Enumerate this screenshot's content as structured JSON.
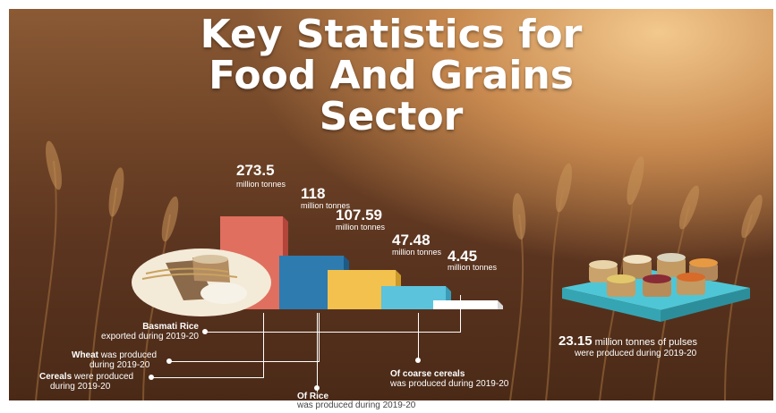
{
  "title": {
    "line1": "Key Statistics for",
    "line2": "Food And Grains",
    "line3": "Sector"
  },
  "unit": "million tonnes",
  "chart_data": {
    "type": "bar",
    "categories": [
      "Basmati Rice exported during 2019-20",
      "Wheat was produced during 2019-20",
      "Cereals were produced during 2019-20",
      "Of Rice was produced during 2019-20",
      "Of coarse cereals was produced during 2019-20"
    ],
    "bars": [
      {
        "value_label": "273.5",
        "value": 273.5,
        "color": "#e06f5f",
        "side": "#b3463b"
      },
      {
        "value_label": "118",
        "value": 118,
        "color": "#2e7bb0",
        "side": "#1d5a86"
      },
      {
        "value_label": "107.59",
        "value": 107.59,
        "color": "#f2c14e",
        "side": "#cc9a2a"
      },
      {
        "value_label": "47.48",
        "value": 47.48,
        "color": "#5cc3dd",
        "side": "#3a9cb6"
      },
      {
        "value_label": "4.45",
        "value": 4.45,
        "color": "#ffffff",
        "side": "#d8d8d8"
      }
    ]
  },
  "captions": {
    "basmati_bold": "Basmati Rice",
    "basmati_rest": "exported during 2019-20",
    "wheat_bold": "Wheat",
    "wheat_rest_1": " was produced",
    "wheat_rest_2": "during 2019-20",
    "cereals_bold": "Cereals",
    "cereals_rest_1": " were produced",
    "cereals_rest_2": "during 2019-20",
    "rice_bold": "Of Rice",
    "rice_rest": "was produced during 2019-20",
    "coarse_bold": "Of coarse cereals",
    "coarse_rest": "was produced during 2019-20"
  },
  "pulses": {
    "value": "23.15",
    "text_1": " million tonnes of pulses",
    "text_2": "were produced during 2019-20"
  }
}
